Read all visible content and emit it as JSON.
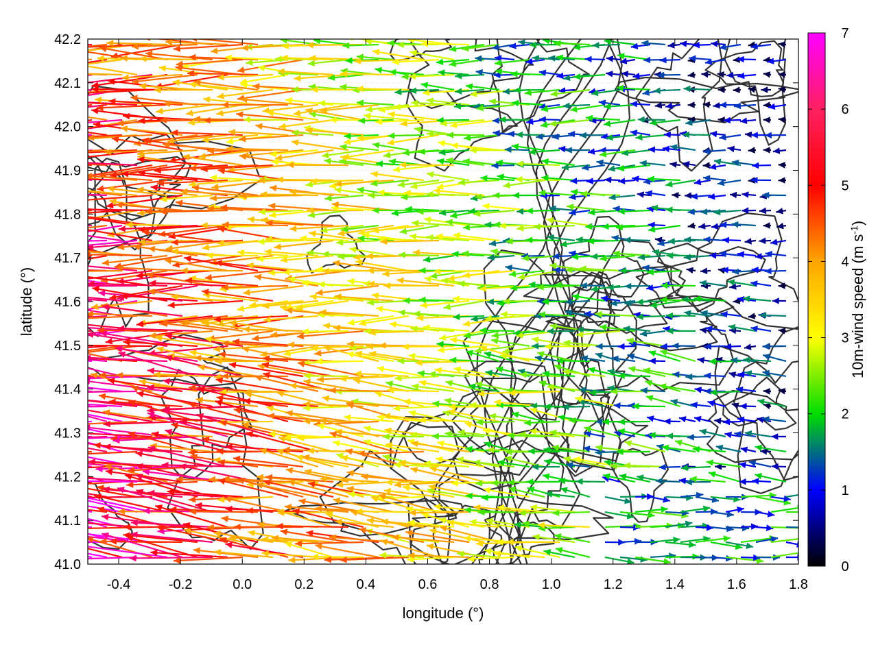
{
  "chart_data": {
    "type": "vector-field",
    "xlabel": "longitude (°)",
    "ylabel": "latitude (°)",
    "colorbar_label": "10m-wind speed (m s",
    "colorbar_label_sup": "-1",
    "colorbar_label_close": ")",
    "xlim": [
      -0.5,
      1.8
    ],
    "ylim": [
      41.0,
      42.2
    ],
    "xticks": [
      -0.4,
      -0.2,
      0.0,
      0.2,
      0.4,
      0.6,
      0.8,
      1.0,
      1.2,
      1.4,
      1.6,
      1.8
    ],
    "xtick_labels": [
      "-0.4",
      "-0.2",
      "0.0",
      "0.2",
      "0.4",
      "0.6",
      "0.8",
      "1.0",
      "1.2",
      "1.4",
      "1.6",
      "1.8"
    ],
    "yticks": [
      41.0,
      41.1,
      41.2,
      41.3,
      41.4,
      41.5,
      41.6,
      41.7,
      41.8,
      41.9,
      42.0,
      42.1,
      42.2
    ],
    "ytick_labels": [
      "41.0",
      "41.1",
      "41.2",
      "41.3",
      "41.4",
      "41.5",
      "41.6",
      "41.7",
      "41.8",
      "41.9",
      "42.0",
      "42.1",
      "42.2"
    ],
    "colorbar_range": [
      0,
      7
    ],
    "colorbar_ticks": [
      0,
      1,
      2,
      3,
      4,
      5,
      6,
      7
    ],
    "colorbar_tick_labels": [
      "0",
      "1",
      "2",
      "3",
      "4",
      "5",
      "6",
      "7"
    ],
    "colormap": [
      "#000000",
      "#0000ff",
      "#00dd00",
      "#ffff00",
      "#ffa500",
      "#ff0000",
      "#ff00ff"
    ],
    "contour_color": "#333333",
    "grid": true
  }
}
